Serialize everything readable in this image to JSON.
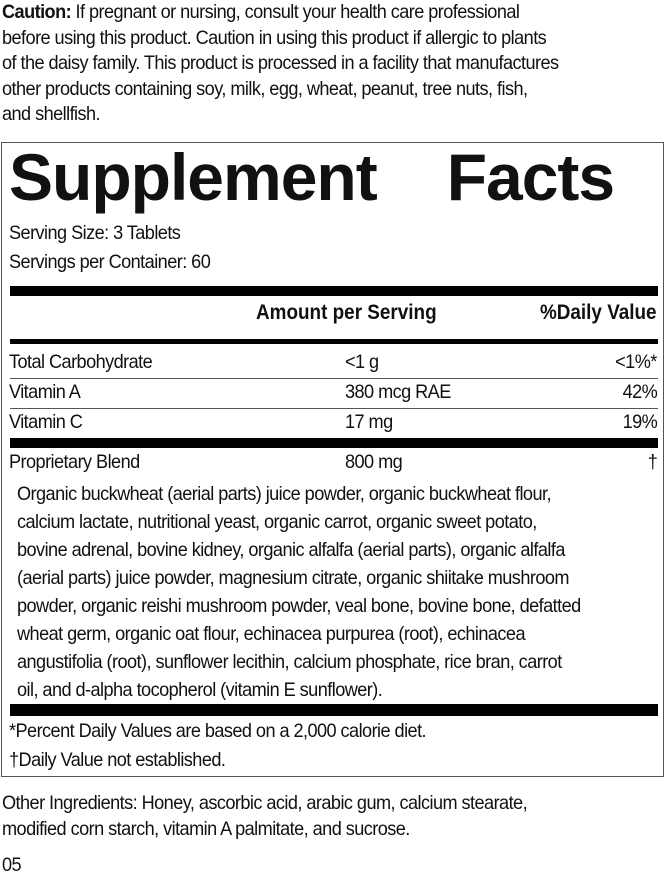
{
  "caution": {
    "label": "Caution:",
    "lines": [
      " If pregnant or nursing, consult your health care professional",
      "before using this product. Caution in using this product if allergic to plants",
      "of the daisy family. This product is processed in a facility that manufactures",
      "other products containing soy, milk, egg, wheat, peanut, tree nuts, fish,",
      "and shellfish."
    ]
  },
  "facts": {
    "title_1": "Supplement",
    "title_2": "Facts",
    "serving_size": "Serving Size: 3 Tablets",
    "servings_per_container": "Servings per Container: 60",
    "header_amount": "Amount per Serving",
    "header_dv": "%Daily Value",
    "rows": [
      {
        "name": "Total Carbohydrate",
        "amount": "<1 g",
        "dv": "<1%*"
      },
      {
        "name": "Vitamin A",
        "amount": "380 mcg RAE",
        "dv": "42%"
      },
      {
        "name": "Vitamin C",
        "amount": "17 mg",
        "dv": "19%"
      },
      {
        "name": "Proprietary Blend",
        "amount": "800 mg",
        "dv": "†"
      }
    ],
    "blend_lines": [
      "Organic buckwheat (aerial parts) juice powder, organic buckwheat flour,",
      "calcium lactate, nutritional yeast, organic carrot, organic sweet potato,",
      "bovine adrenal, bovine kidney, organic alfalfa (aerial parts), organic alfalfa",
      "(aerial parts) juice powder, magnesium citrate, organic shiitake mushroom",
      "powder, organic reishi mushroom powder, veal bone, bovine bone, defatted",
      "wheat germ, organic oat flour, echinacea purpurea (root), echinacea",
      "angustifolia (root), sunflower lecithin, calcium phosphate, rice bran, carrot",
      "oil, and d-alpha tocopherol (vitamin E sunflower)."
    ],
    "footnote_1": "*Percent Daily Values are based on a 2,000 calorie diet.",
    "footnote_2": "†Daily Value not established."
  },
  "other_ingredients": [
    "Other Ingredients: Honey, ascorbic acid, arabic gum, calcium stearate,",
    "modified corn starch, vitamin A palmitate, and sucrose."
  ],
  "code": "05"
}
